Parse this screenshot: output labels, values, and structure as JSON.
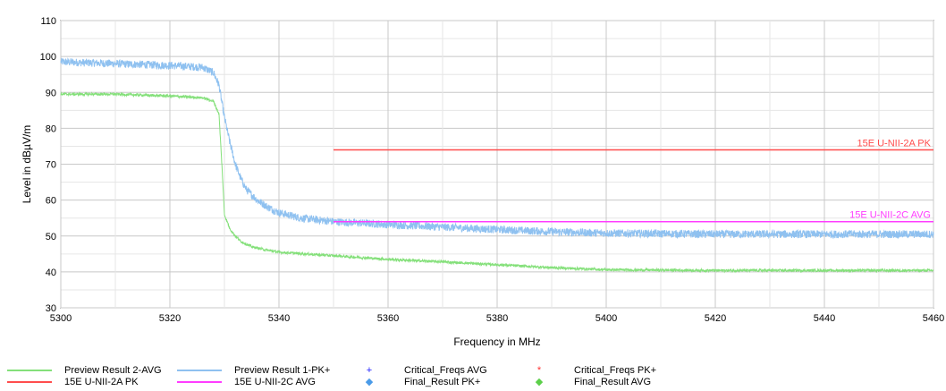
{
  "chart_data": {
    "type": "line",
    "xlabel": "Frequency in MHz",
    "ylabel": "Level in dBµV/m",
    "xlim": [
      5300,
      5460
    ],
    "ylim": [
      30,
      110
    ],
    "x_ticks": [
      "5300",
      "5320",
      "5340",
      "5360",
      "5380",
      "5400",
      "5420",
      "5440",
      "5460"
    ],
    "y_ticks": [
      "30",
      "40",
      "50",
      "60",
      "70",
      "80",
      "90",
      "100",
      "110"
    ],
    "grid": true,
    "series": [
      {
        "name": "Preview Result 1-PK+",
        "color": "#8fc1f0",
        "noise": 1.1,
        "x": [
          5300,
          5310,
          5320,
          5326,
          5328,
          5329,
          5330,
          5331,
          5332,
          5333,
          5334,
          5336,
          5338,
          5340,
          5344,
          5350,
          5360,
          5370,
          5380,
          5390,
          5400,
          5420,
          5440,
          5460
        ],
        "y": [
          98.5,
          98,
          97.5,
          97,
          95.5,
          92,
          83,
          76,
          70,
          66,
          63,
          60,
          58,
          56.5,
          55,
          54,
          53.2,
          52.5,
          51.8,
          51.2,
          50.8,
          50.5,
          50.5,
          50.5
        ]
      },
      {
        "name": "Preview Result 2-AVG",
        "color": "#84e07a",
        "noise": 0.35,
        "x": [
          5300,
          5310,
          5320,
          5326,
          5328,
          5329,
          5329.6,
          5330,
          5331,
          5332,
          5333,
          5335,
          5338,
          5340,
          5345,
          5350,
          5360,
          5370,
          5380,
          5390,
          5400,
          5420,
          5440,
          5460
        ],
        "y": [
          89.5,
          89.5,
          89,
          88.5,
          87.5,
          84,
          68,
          56,
          52,
          50,
          48.5,
          47,
          46,
          45.5,
          45,
          44.5,
          43.5,
          42.8,
          42,
          41.2,
          40.6,
          40.4,
          40.4,
          40.4
        ]
      }
    ],
    "limits": [
      {
        "name": "15E U-NII-2A PK",
        "label": "15E U-NII-2A PK",
        "color": "#ff4d4d",
        "x": [
          5350,
          5460
        ],
        "y": 74
      },
      {
        "name": "15E U-NII-2C AVG",
        "label": "15E U-NII-2C AVG",
        "color": "#ff3dff",
        "x": [
          5350,
          5460
        ],
        "y": 54
      }
    ]
  },
  "legend": [
    {
      "label": "Preview Result 2-AVG",
      "kind": "line",
      "color": "#84e07a"
    },
    {
      "label": "Preview Result 1-PK+",
      "kind": "line",
      "color": "#8fc1f0"
    },
    {
      "label": "Critical_Freqs AVG",
      "kind": "mark",
      "symbol": "+",
      "color": "#1a1aff"
    },
    {
      "label": "Critical_Freqs PK+",
      "kind": "mark",
      "symbol": "*",
      "color": "#ff3030"
    },
    {
      "label": "15E U-NII-2A PK",
      "kind": "line",
      "color": "#ff4d4d"
    },
    {
      "label": "15E U-NII-2C AVG",
      "kind": "line",
      "color": "#ff3dff"
    },
    {
      "label": "Final_Result PK+",
      "kind": "mark",
      "symbol": "◆",
      "color": "#4a9be8"
    },
    {
      "label": "Final_Result AVG",
      "kind": "mark",
      "symbol": "◆",
      "color": "#5ccf4a"
    }
  ]
}
